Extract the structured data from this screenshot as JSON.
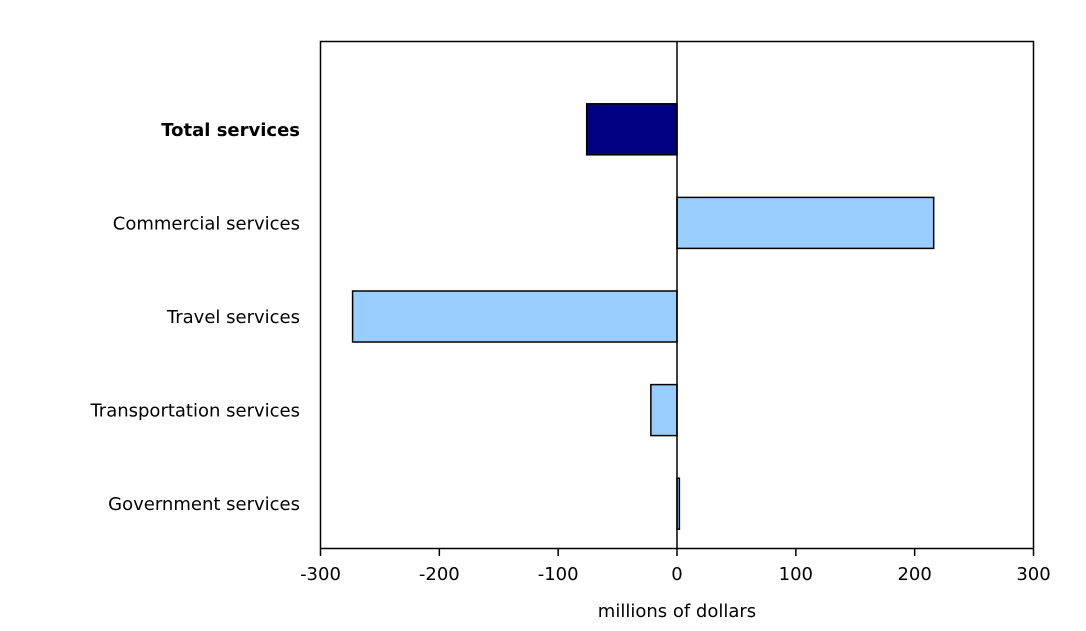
{
  "chart_data": {
    "type": "bar",
    "orientation": "horizontal",
    "categories": [
      "Total services",
      "Commercial services",
      "Travel services",
      "Transportation services",
      "Government services"
    ],
    "values": [
      -76,
      216,
      -273,
      -22,
      2
    ],
    "emphasized_category": "Total services",
    "xlabel": "millions of dollars",
    "ylabel": "",
    "xlim": [
      -300,
      300
    ],
    "xticks": [
      "-300",
      "-200",
      "-100",
      "0",
      "100",
      "200",
      "300"
    ],
    "grid": false,
    "legend": "none",
    "colors": {
      "total": "#000080",
      "component": "#99ccff",
      "outline": "#000000"
    }
  }
}
